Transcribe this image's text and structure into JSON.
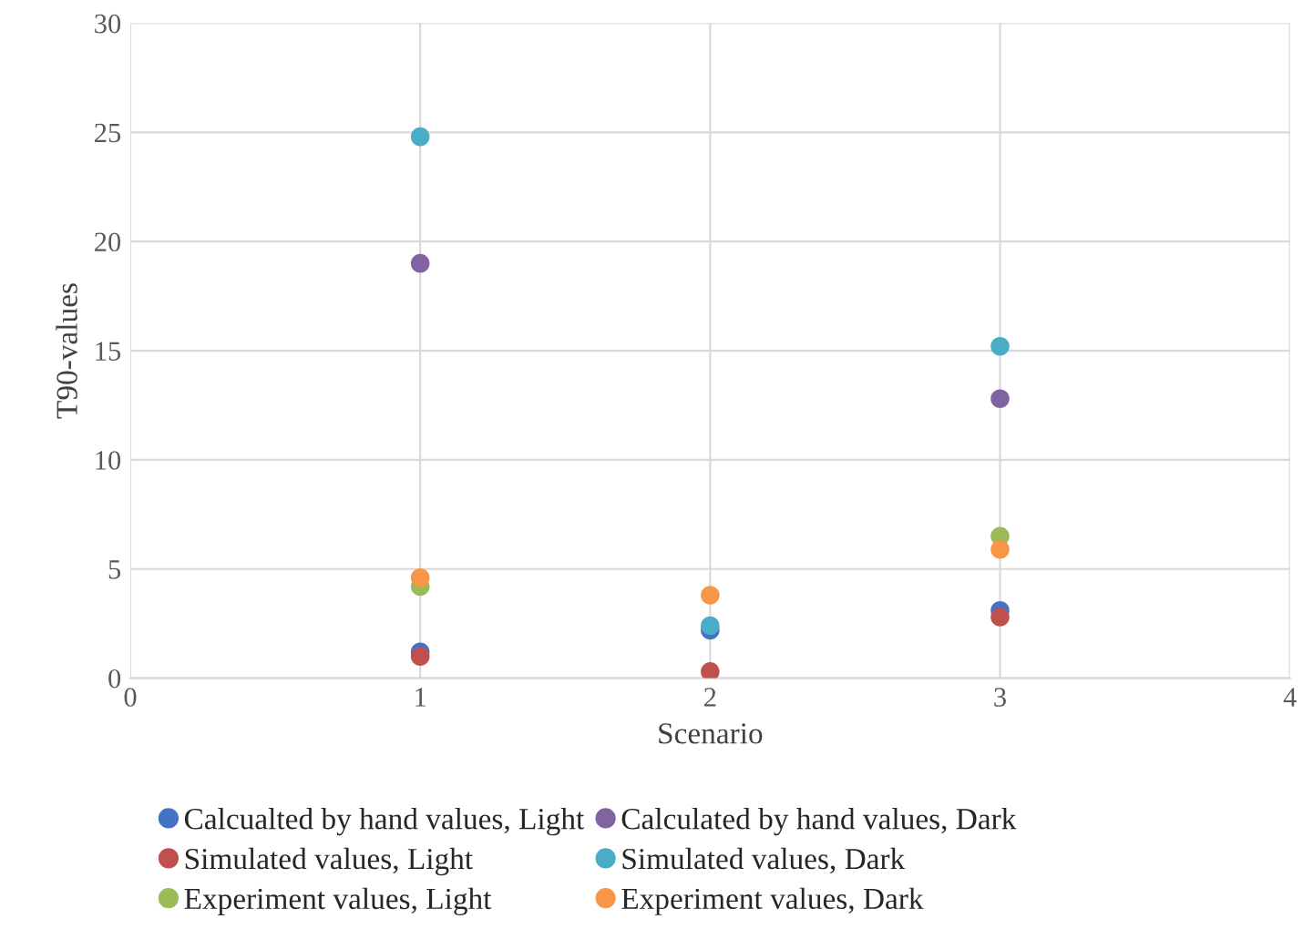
{
  "chart_data": {
    "type": "scatter",
    "xlabel": "Scenario",
    "ylabel": "T90-values",
    "x": [
      1,
      2,
      3
    ],
    "series": [
      {
        "name": "Calcualted by hand values, Light",
        "color": "#4472c4",
        "values": [
          1.2,
          2.2,
          3.1
        ]
      },
      {
        "name": "Simulated values, Light",
        "color": "#c0504d",
        "values": [
          1.0,
          0.3,
          2.8
        ]
      },
      {
        "name": "Experiment values, Light",
        "color": "#9bbb59",
        "values": [
          4.2,
          null,
          6.5
        ]
      },
      {
        "name": "Calculated by hand values, Dark",
        "color": "#8064a2",
        "values": [
          19.0,
          null,
          12.8
        ]
      },
      {
        "name": "Simulated values, Dark",
        "color": "#4bacc6",
        "values": [
          24.8,
          2.4,
          15.2
        ]
      },
      {
        "name": "Experiment values, Dark",
        "color": "#f79646",
        "values": [
          4.6,
          3.8,
          5.9
        ]
      }
    ],
    "xlim": [
      0,
      4
    ],
    "xticks": [
      0,
      1,
      2,
      3,
      4
    ],
    "ylim": [
      0,
      30
    ],
    "yticks": [
      0,
      5,
      10,
      15,
      20,
      25,
      30
    ],
    "grid": true,
    "legend": "bottom",
    "marker": "circle"
  }
}
